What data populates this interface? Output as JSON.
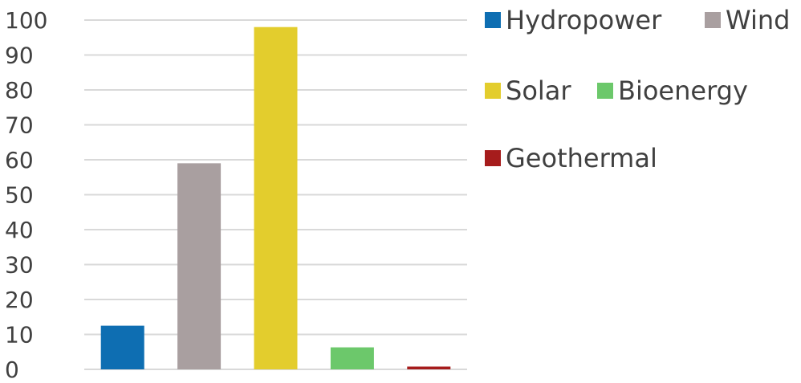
{
  "chart_data": {
    "type": "bar",
    "categories": [
      "Hydropower",
      "Wind",
      "Solar",
      "Bioenergy",
      "Geothermal"
    ],
    "values": [
      12.5,
      59,
      98,
      6.3,
      0.8
    ],
    "colors": [
      "#0e6eb2",
      "#a99fa0",
      "#e3cd2d",
      "#6cc86b",
      "#a61c1c"
    ],
    "yticks": [
      "0",
      "10",
      "20",
      "30",
      "40",
      "50",
      "60",
      "70",
      "80",
      "90",
      "100"
    ],
    "ylim": [
      0,
      100
    ],
    "grid": true,
    "legend": {
      "placement": "top-right",
      "items": [
        {
          "label": "Hydropower",
          "color": "#0e6eb2"
        },
        {
          "label": "Wind",
          "color": "#a99fa0"
        },
        {
          "label": "Solar",
          "color": "#e3cd2d"
        },
        {
          "label": "Bioenergy",
          "color": "#6cc86b"
        },
        {
          "label": "Geothermal",
          "color": "#a61c1c"
        }
      ]
    }
  }
}
